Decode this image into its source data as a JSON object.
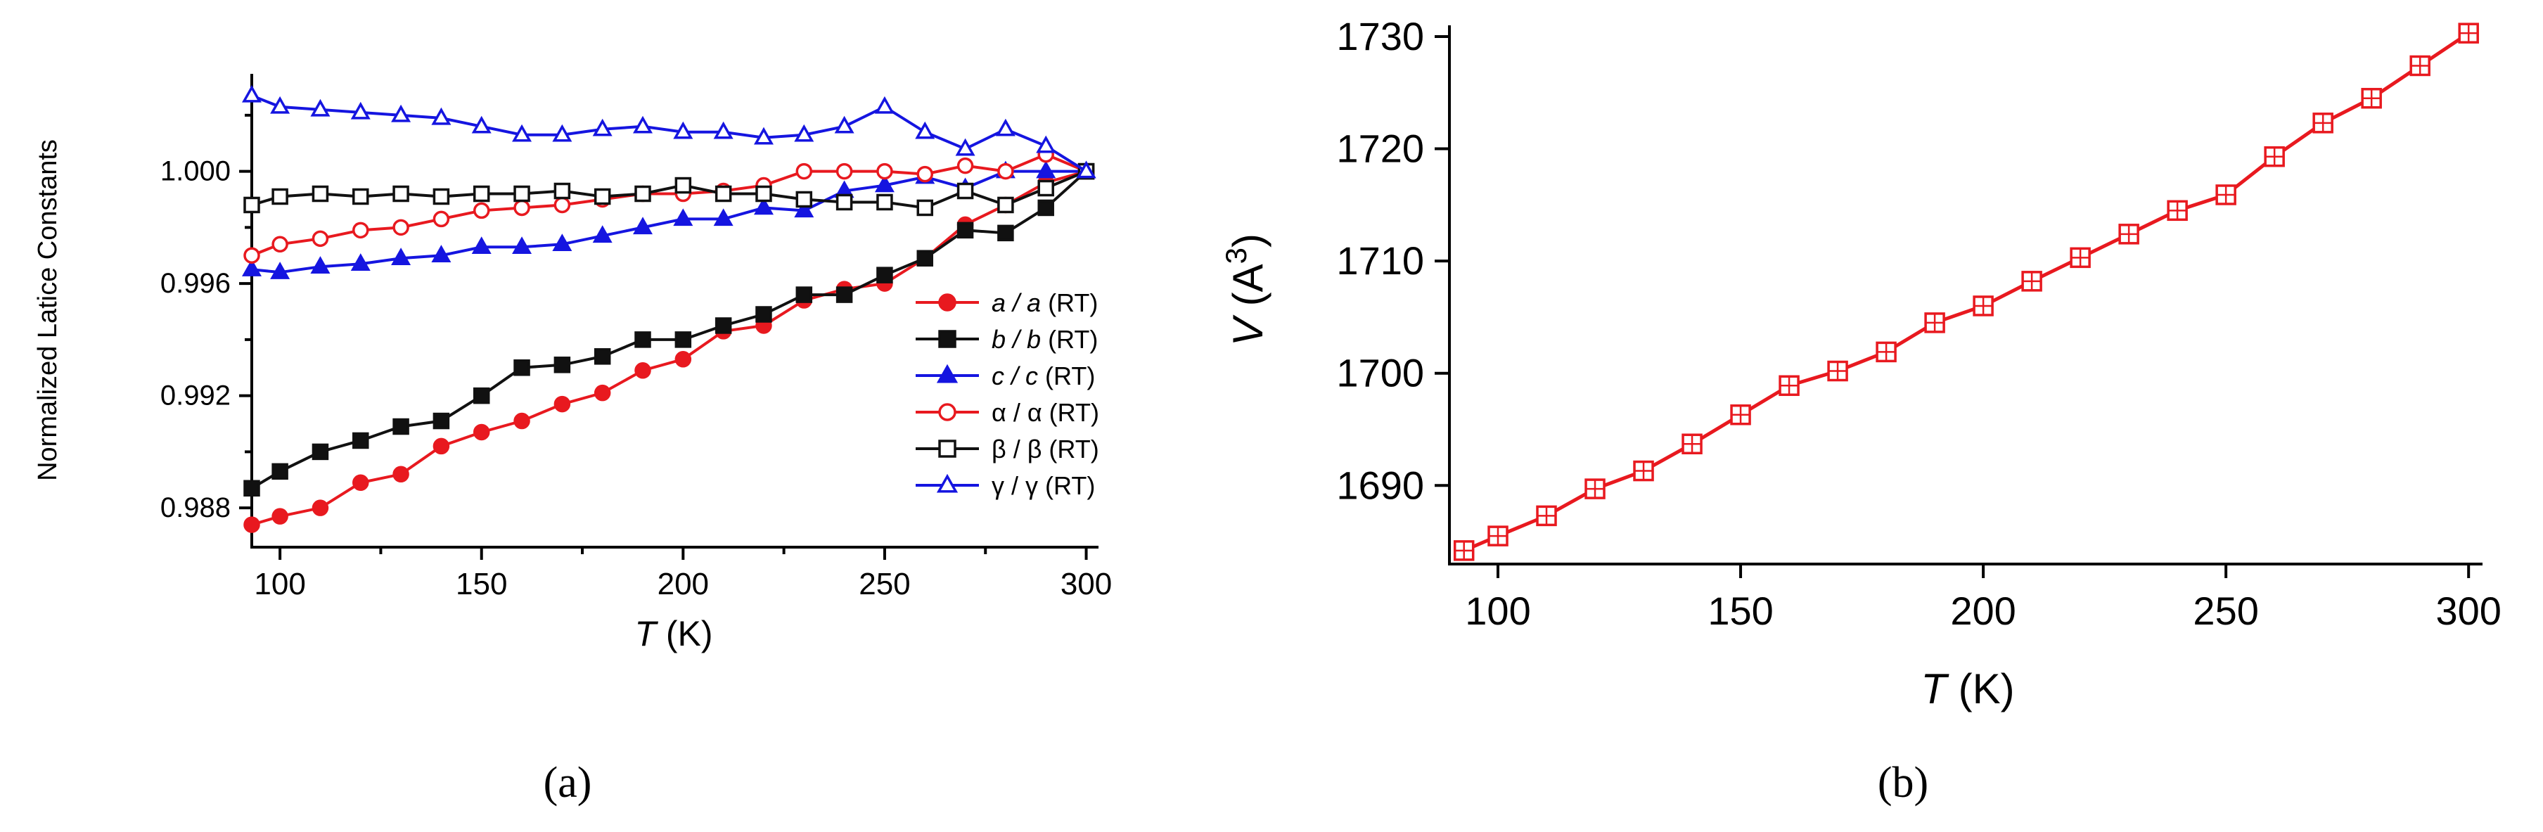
{
  "panel_labels": {
    "a": "(a)",
    "b": "(b)"
  },
  "colors": {
    "red": "#e8191f",
    "black": "#111111",
    "blue": "#1515e0"
  },
  "chart_data": [
    {
      "type": "line",
      "panel": "a",
      "xlabel": {
        "italic": "T",
        "rest": " (K)"
      },
      "ylabel": "Normalized Latice Constants",
      "xlim": [
        93,
        302
      ],
      "ylim": [
        0.9866,
        1.0033
      ],
      "xticks": [
        100,
        150,
        200,
        250,
        300
      ],
      "xtick_labels": [
        "100",
        "150",
        "200",
        "250",
        "300"
      ],
      "yticks": [
        0.988,
        0.992,
        0.996,
        1.0
      ],
      "ytick_labels": [
        "0.988",
        "0.992",
        "0.996",
        "1.000"
      ],
      "yminor": [
        0.99,
        0.994,
        0.998,
        1.002
      ],
      "x": [
        93,
        100,
        110,
        120,
        130,
        140,
        150,
        160,
        170,
        180,
        190,
        200,
        210,
        220,
        230,
        240,
        250,
        260,
        270,
        280,
        290,
        300
      ],
      "series": [
        {
          "name": "a",
          "legend": {
            "sym": "a / a",
            "italic": true,
            "suffix": "(RT)"
          },
          "color": "#e8191f",
          "marker": "circle",
          "filled": true,
          "values": [
            0.9874,
            0.9877,
            0.988,
            0.9889,
            0.9892,
            0.9902,
            0.9907,
            0.9911,
            0.9917,
            0.9921,
            0.9929,
            0.9933,
            0.9943,
            0.9945,
            0.9954,
            0.9958,
            0.996,
            0.9969,
            0.9981,
            0.9988,
            0.9996,
            1.0
          ]
        },
        {
          "name": "b",
          "legend": {
            "sym": "b / b",
            "italic": true,
            "suffix": "(RT)"
          },
          "color": "#111111",
          "marker": "square",
          "filled": true,
          "values": [
            0.9887,
            0.9893,
            0.99,
            0.9904,
            0.9909,
            0.9911,
            0.992,
            0.993,
            0.9931,
            0.9934,
            0.994,
            0.994,
            0.9945,
            0.9949,
            0.9956,
            0.9956,
            0.9963,
            0.9969,
            0.9979,
            0.9978,
            0.9987,
            1.0
          ]
        },
        {
          "name": "c",
          "legend": {
            "sym": "c / c",
            "italic": true,
            "suffix": "(RT)"
          },
          "color": "#1515e0",
          "marker": "triangle",
          "filled": true,
          "values": [
            0.9965,
            0.9964,
            0.9966,
            0.9967,
            0.9969,
            0.997,
            0.9973,
            0.9973,
            0.9974,
            0.9977,
            0.998,
            0.9983,
            0.9983,
            0.9987,
            0.9986,
            0.9993,
            0.9995,
            0.9998,
            0.9994,
            1.0,
            1.0,
            1.0
          ]
        },
        {
          "name": "alpha",
          "legend": {
            "sym": "α / α",
            "italic": false,
            "suffix": "(RT)"
          },
          "color": "#e8191f",
          "marker": "circle",
          "filled": false,
          "values": [
            0.997,
            0.9974,
            0.9976,
            0.9979,
            0.998,
            0.9983,
            0.9986,
            0.9987,
            0.9988,
            0.999,
            0.9992,
            0.9992,
            0.9993,
            0.9995,
            1.0,
            1.0,
            1.0,
            0.9999,
            1.0002,
            1.0,
            1.0006,
            1.0
          ]
        },
        {
          "name": "beta",
          "legend": {
            "sym": "β / β",
            "italic": false,
            "suffix": "(RT)"
          },
          "color": "#111111",
          "marker": "square",
          "filled": false,
          "values": [
            0.9988,
            0.9991,
            0.9992,
            0.9991,
            0.9992,
            0.9991,
            0.9992,
            0.9992,
            0.9993,
            0.9991,
            0.9992,
            0.9995,
            0.9992,
            0.9992,
            0.999,
            0.9989,
            0.9989,
            0.9987,
            0.9993,
            0.9988,
            0.9994,
            1.0
          ]
        },
        {
          "name": "gamma",
          "legend": {
            "sym": "γ / γ",
            "italic": false,
            "suffix": "(RT)"
          },
          "color": "#1515e0",
          "marker": "triangle",
          "filled": false,
          "values": [
            1.0027,
            1.0023,
            1.0022,
            1.0021,
            1.002,
            1.0019,
            1.0016,
            1.0013,
            1.0013,
            1.0015,
            1.0016,
            1.0014,
            1.0014,
            1.0012,
            1.0013,
            1.0016,
            1.0023,
            1.0014,
            1.0008,
            1.0015,
            1.0009,
            1.0
          ]
        }
      ]
    },
    {
      "type": "line",
      "panel": "b",
      "xlabel": {
        "italic": "T",
        "rest": " (K)"
      },
      "ylabel": {
        "italic": "V",
        "rest": " (A",
        "sup": "3",
        "close": ")"
      },
      "xlim": [
        90,
        302
      ],
      "ylim": [
        1683,
        1731
      ],
      "xticks": [
        100,
        150,
        200,
        250,
        300
      ],
      "xtick_labels": [
        "100",
        "150",
        "200",
        "250",
        "300"
      ],
      "yticks": [
        1690,
        1700,
        1710,
        1720,
        1730
      ],
      "ytick_labels": [
        "1690",
        "1700",
        "1710",
        "1720",
        "1730"
      ],
      "x": [
        93,
        100,
        110,
        120,
        130,
        140,
        150,
        160,
        170,
        180,
        190,
        200,
        210,
        220,
        230,
        240,
        250,
        260,
        270,
        280,
        290,
        300
      ],
      "series": [
        {
          "name": "V",
          "color": "#e8191f",
          "marker": "crossed-square",
          "values": [
            1684.2,
            1685.5,
            1687.3,
            1689.7,
            1691.3,
            1693.7,
            1696.3,
            1698.9,
            1700.2,
            1701.9,
            1704.5,
            1706.0,
            1708.2,
            1710.3,
            1712.4,
            1714.5,
            1715.9,
            1719.3,
            1722.3,
            1724.5,
            1727.4,
            1730.3
          ]
        }
      ]
    }
  ]
}
